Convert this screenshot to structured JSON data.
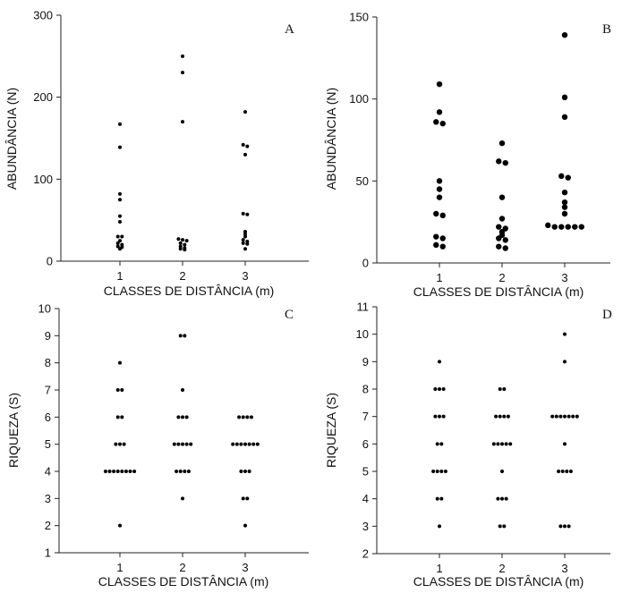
{
  "chart_data": [
    {
      "type": "scatter",
      "panel": "A",
      "xlabel": "CLASSES DE DISTÂNCIA (m)",
      "ylabel": "ABUNDÂNCIA (N)",
      "categories": [
        "1",
        "2",
        "3"
      ],
      "yticks": [
        0,
        100,
        200,
        300
      ],
      "ylim": [
        0,
        300
      ],
      "point_size": "small",
      "series": [
        {
          "category": "1",
          "values": [
            167,
            139,
            82,
            75,
            55,
            48,
            30,
            30,
            25,
            22,
            20,
            18,
            17,
            15
          ]
        },
        {
          "category": "2",
          "values": [
            250,
            230,
            170,
            27,
            26,
            25,
            22,
            20,
            18,
            16,
            15,
            14
          ]
        },
        {
          "category": "3",
          "values": [
            182,
            142,
            140,
            130,
            58,
            57,
            36,
            33,
            30,
            26,
            24,
            22,
            21,
            15
          ]
        }
      ]
    },
    {
      "type": "scatter",
      "panel": "B",
      "xlabel": "CLASSES DE DISTÂNCIA (m)",
      "ylabel": "ABUNDÂNCIA (N)",
      "categories": [
        "1",
        "2",
        "3"
      ],
      "yticks": [
        0,
        50,
        100,
        150
      ],
      "ylim": [
        0,
        150
      ],
      "point_size": "large",
      "series": [
        {
          "category": "1",
          "values": [
            109,
            92,
            86,
            85,
            50,
            45,
            40,
            30,
            29,
            16,
            15,
            11,
            10
          ]
        },
        {
          "category": "2",
          "values": [
            73,
            62,
            61,
            40,
            27,
            22,
            21,
            19,
            17,
            15,
            14,
            10,
            9
          ]
        },
        {
          "category": "3",
          "values": [
            139,
            101,
            89,
            53,
            52,
            43,
            37,
            34,
            30,
            23,
            22,
            22,
            22,
            22,
            22
          ]
        }
      ]
    },
    {
      "type": "scatter",
      "panel": "C",
      "xlabel": "CLASSES DE DISTÂNCIA (m)",
      "ylabel": "RIQUEZA (S)",
      "categories": [
        "1",
        "2",
        "3"
      ],
      "yticks": [
        1,
        2,
        3,
        4,
        5,
        6,
        7,
        8,
        9,
        10
      ],
      "ylim": [
        1,
        10
      ],
      "point_size": "small",
      "series": [
        {
          "category": "1",
          "values": [
            8,
            7,
            7,
            6,
            6,
            5,
            5,
            5,
            4,
            4,
            4,
            4,
            4,
            4,
            4,
            4,
            2
          ]
        },
        {
          "category": "2",
          "values": [
            9,
            9,
            7,
            6,
            6,
            6,
            5,
            5,
            5,
            5,
            5,
            4,
            4,
            4,
            4,
            3
          ]
        },
        {
          "category": "3",
          "values": [
            6,
            6,
            6,
            6,
            5,
            5,
            5,
            5,
            5,
            5,
            5,
            4,
            4,
            4,
            3,
            3,
            2
          ]
        }
      ]
    },
    {
      "type": "scatter",
      "panel": "D",
      "xlabel": "CLASSES DE DISTÂNCIA (m)",
      "ylabel": "RIQUEZA (S)",
      "categories": [
        "1",
        "2",
        "3"
      ],
      "yticks": [
        2,
        3,
        4,
        5,
        6,
        7,
        8,
        9,
        10,
        11
      ],
      "ylim": [
        2,
        11
      ],
      "point_size": "small",
      "series": [
        {
          "category": "1",
          "values": [
            9,
            8,
            8,
            8,
            7,
            7,
            7,
            6,
            6,
            5,
            5,
            5,
            5,
            4,
            4,
            3
          ]
        },
        {
          "category": "2",
          "values": [
            8,
            8,
            7,
            7,
            7,
            7,
            6,
            6,
            6,
            6,
            6,
            5,
            4,
            4,
            4,
            3,
            3
          ]
        },
        {
          "category": "3",
          "values": [
            10,
            9,
            7,
            7,
            7,
            7,
            7,
            7,
            7,
            6,
            5,
            5,
            5,
            5,
            3,
            3,
            3
          ]
        }
      ]
    }
  ]
}
